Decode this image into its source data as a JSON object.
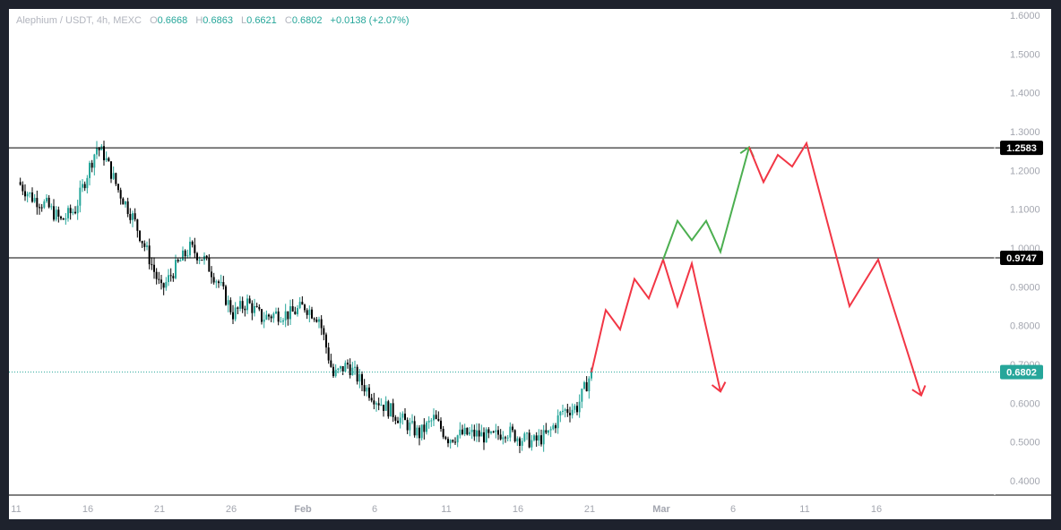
{
  "legend": {
    "symbol": "Alephium / USDT, 4h, MEXC",
    "o_label": "O",
    "o_value": "0.6668",
    "h_label": "H",
    "h_value": "0.6863",
    "l_label": "L",
    "l_value": "0.6621",
    "c_label": "C",
    "c_value": "0.6802",
    "change": "+0.0138 (+2.07%)"
  },
  "colors": {
    "up": "#26a69a",
    "down": "#000000",
    "projection_green": "#4caf50",
    "projection_red": "#f23645",
    "last_price": "#26a69a"
  },
  "chart_data": {
    "type": "candlestick",
    "title": "Alephium / USDT, 4h, MEXC",
    "ylim": [
      0.35,
      1.65
    ],
    "y_ticks": [
      "1.6000",
      "1.5000",
      "1.4000",
      "1.3000",
      "1.2000",
      "1.1000",
      "1.0000",
      "0.9000",
      "0.8000",
      "0.7000",
      "0.6000",
      "0.5000",
      "0.4000"
    ],
    "x_ticks": [
      "11",
      "16",
      "21",
      "26",
      "Feb",
      "6",
      "11",
      "16",
      "21",
      "Mar",
      "6",
      "11",
      "16"
    ],
    "x_ticks_bold": [
      "Feb",
      "Mar"
    ],
    "price_path": [
      [
        "Jan 11",
        1.17
      ],
      [
        "Jan 12",
        1.13
      ],
      [
        "Jan 13",
        1.11
      ],
      [
        "Jan 14",
        1.07
      ],
      [
        "Jan 15",
        1.1
      ],
      [
        "Jan 16",
        1.21
      ],
      [
        "Jan 16.5",
        1.26
      ],
      [
        "Jan 17",
        1.24
      ],
      [
        "Jan 18",
        1.15
      ],
      [
        "Jan 19",
        1.08
      ],
      [
        "Jan 20",
        0.99
      ],
      [
        "Jan 21",
        0.89
      ],
      [
        "Jan 22",
        0.95
      ],
      [
        "Jan 23",
        1.0
      ],
      [
        "Jan 24",
        0.97
      ],
      [
        "Jan 25",
        0.91
      ],
      [
        "Jan 26",
        0.83
      ],
      [
        "Jan 27",
        0.86
      ],
      [
        "Jan 28",
        0.82
      ],
      [
        "Jan 29",
        0.83
      ],
      [
        "Jan 30",
        0.83
      ],
      [
        "Jan 31",
        0.85
      ],
      [
        "Feb 1",
        0.82
      ],
      [
        "Feb 2",
        0.67
      ],
      [
        "Feb 3",
        0.7
      ],
      [
        "Feb 4",
        0.65
      ],
      [
        "Feb 5",
        0.61
      ],
      [
        "Feb 6",
        0.58
      ],
      [
        "Feb 7",
        0.55
      ],
      [
        "Feb 8",
        0.52
      ],
      [
        "Feb 9",
        0.56
      ],
      [
        "Feb 10",
        0.51
      ],
      [
        "Feb 11",
        0.52
      ],
      [
        "Feb 12",
        0.52
      ],
      [
        "Feb 13",
        0.51
      ],
      [
        "Feb 14",
        0.53
      ],
      [
        "Feb 15",
        0.51
      ],
      [
        "Feb 16",
        0.5
      ],
      [
        "Feb 17",
        0.52
      ],
      [
        "Feb 18",
        0.58
      ],
      [
        "Feb 19",
        0.59
      ],
      [
        "Feb 20",
        0.68
      ]
    ],
    "horizontal_levels": [
      {
        "value": 1.2583,
        "label": "1.2583"
      },
      {
        "value": 0.9747,
        "label": "0.9747"
      }
    ],
    "last_price": {
      "value": 0.6802,
      "label": "0.6802"
    },
    "projections": [
      {
        "color": "red",
        "points": [
          [
            "Feb 20",
            0.68
          ],
          [
            "Feb 21",
            0.84
          ],
          [
            "Feb 22",
            0.79
          ],
          [
            "Feb 23",
            0.92
          ],
          [
            "Feb 24",
            0.87
          ],
          [
            "Feb 25",
            0.97
          ],
          [
            "Feb 26",
            0.85
          ],
          [
            "Feb 27",
            0.96
          ],
          [
            "Mar 1",
            0.63
          ]
        ],
        "arrow": true
      },
      {
        "color": "green",
        "points": [
          [
            "Feb 25",
            0.97
          ],
          [
            "Feb 26",
            1.07
          ],
          [
            "Feb 27",
            1.02
          ],
          [
            "Feb 28",
            1.07
          ],
          [
            "Mar 1",
            0.99
          ],
          [
            "Mar 3",
            1.26
          ]
        ],
        "arrow": true
      },
      {
        "color": "red",
        "points": [
          [
            "Mar 3",
            1.26
          ],
          [
            "Mar 4",
            1.17
          ],
          [
            "Mar 5",
            1.24
          ],
          [
            "Mar 6",
            1.21
          ],
          [
            "Mar 7",
            1.27
          ],
          [
            "Mar 10",
            0.85
          ],
          [
            "Mar 12",
            0.97
          ],
          [
            "Mar 15",
            0.62
          ]
        ],
        "arrow": true
      }
    ]
  }
}
